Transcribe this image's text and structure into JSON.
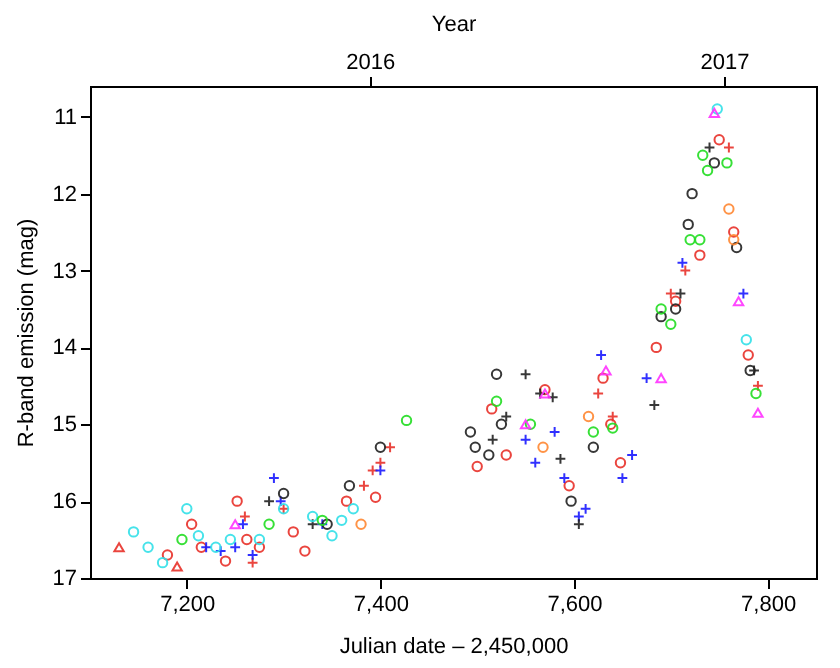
{
  "chart_data": {
    "type": "scatter",
    "xlabel": "Julian date – 2,450,000",
    "ylabel": "R-band emission (mag)",
    "x2label": "Year",
    "xlim": [
      7100,
      7850
    ],
    "xticks": [
      {
        "value": 7200,
        "label": "7,200"
      },
      {
        "value": 7400,
        "label": "7,400"
      },
      {
        "value": 7600,
        "label": "7,600"
      },
      {
        "value": 7800,
        "label": "7,800"
      }
    ],
    "x2lim": [
      2015.21,
      2017.26
    ],
    "x2ticks": [
      2016,
      2017
    ],
    "ylim": [
      17,
      10.6
    ],
    "yticks": [
      11,
      12,
      13,
      14,
      15,
      16,
      17
    ],
    "grid": false,
    "series": [
      {
        "color": "#e8312a",
        "marker": "circle",
        "x": [
          7180,
          7205,
          7215,
          7240,
          7252,
          7262,
          7275,
          7310,
          7322,
          7365,
          7395,
          7500,
          7515,
          7530,
          7570,
          7595,
          7630,
          7638,
          7648,
          7685,
          7705,
          7730,
          7750,
          7765,
          7780
        ],
        "values": [
          16.7,
          16.3,
          16.6,
          16.78,
          16.0,
          16.5,
          16.6,
          16.4,
          16.65,
          16.0,
          15.95,
          15.55,
          14.8,
          15.4,
          14.55,
          15.8,
          14.4,
          15.0,
          15.5,
          14.0,
          13.4,
          12.8,
          11.3,
          12.5,
          14.1
        ]
      },
      {
        "color": "#e8312a",
        "marker": "cross",
        "x": [
          7260,
          7268,
          7300,
          7383,
          7392,
          7400,
          7410,
          7625,
          7640,
          7700,
          7715,
          7760,
          7790
        ],
        "values": [
          16.2,
          16.8,
          16.1,
          15.8,
          15.6,
          15.5,
          15.3,
          14.6,
          14.9,
          13.3,
          13.0,
          11.4,
          14.5
        ]
      },
      {
        "color": "#1a1aff",
        "marker": "cross",
        "x": [
          7220,
          7235,
          7250,
          7258,
          7268,
          7290,
          7297,
          7340,
          7400,
          7550,
          7560,
          7580,
          7590,
          7605,
          7612,
          7628,
          7650,
          7660,
          7675,
          7712,
          7775
        ],
        "values": [
          16.6,
          16.65,
          16.6,
          16.3,
          16.7,
          15.7,
          16.0,
          16.3,
          15.6,
          15.2,
          15.5,
          15.1,
          15.7,
          16.2,
          16.1,
          14.1,
          15.7,
          15.4,
          14.4,
          12.9,
          13.3
        ]
      },
      {
        "color": "#222222",
        "marker": "circle",
        "x": [
          7300,
          7345,
          7368,
          7400,
          7493,
          7498,
          7512,
          7520,
          7525,
          7597,
          7620,
          7690,
          7705,
          7718,
          7722,
          7745,
          7768,
          7782
        ],
        "values": [
          15.9,
          16.3,
          15.8,
          15.3,
          15.1,
          15.3,
          15.4,
          14.35,
          15.0,
          16.0,
          15.3,
          13.6,
          13.5,
          12.4,
          12.0,
          11.6,
          12.7,
          14.3
        ]
      },
      {
        "color": "#222222",
        "marker": "cross",
        "x": [
          7285,
          7330,
          7516,
          7530,
          7550,
          7565,
          7578,
          7586,
          7605,
          7683,
          7710,
          7740,
          7786
        ],
        "values": [
          16.0,
          16.3,
          15.2,
          14.9,
          14.35,
          14.6,
          14.65,
          15.45,
          16.3,
          14.75,
          13.3,
          11.4,
          14.3
        ]
      },
      {
        "color": "#33e0e8",
        "marker": "circle",
        "x": [
          7145,
          7160,
          7175,
          7200,
          7212,
          7230,
          7245,
          7275,
          7300,
          7330,
          7350,
          7360,
          7372,
          7748,
          7778
        ],
        "values": [
          16.4,
          16.6,
          16.8,
          16.1,
          16.45,
          16.6,
          16.5,
          16.5,
          16.1,
          16.2,
          16.45,
          16.25,
          16.1,
          10.9,
          13.9
        ]
      },
      {
        "color": "#22dd22",
        "marker": "circle",
        "x": [
          7195,
          7285,
          7340,
          7427,
          7520,
          7555,
          7620,
          7640,
          7690,
          7700,
          7720,
          7730,
          7733,
          7738,
          7758,
          7788
        ],
        "values": [
          16.5,
          16.3,
          16.25,
          14.95,
          14.7,
          15.0,
          15.1,
          15.05,
          13.5,
          13.7,
          12.6,
          12.6,
          11.5,
          11.7,
          11.6,
          14.6
        ]
      },
      {
        "color": "#ff33ff",
        "marker": "triangle",
        "x": [
          7250,
          7550,
          7570,
          7633,
          7690,
          7745,
          7770,
          7790
        ],
        "values": [
          16.3,
          15.0,
          14.6,
          14.3,
          14.4,
          10.95,
          13.4,
          14.85
        ]
      },
      {
        "color": "#ff8833",
        "marker": "circle",
        "x": [
          7380,
          7568,
          7615,
          7760,
          7765
        ],
        "values": [
          16.3,
          15.3,
          14.9,
          12.2,
          12.6
        ]
      },
      {
        "color": "#e8312a",
        "marker": "triangle",
        "x": [
          7130,
          7190
        ],
        "values": [
          16.6,
          16.85
        ]
      }
    ]
  }
}
